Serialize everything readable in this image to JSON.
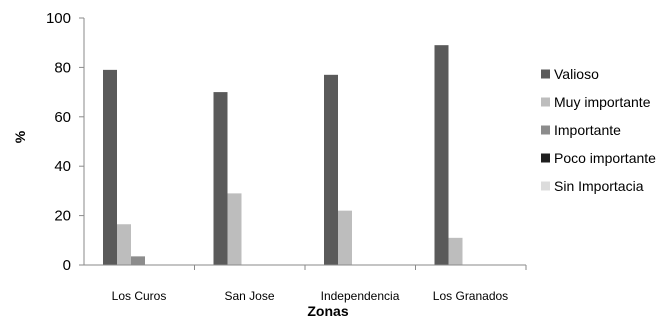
{
  "chart_data": {
    "type": "bar",
    "title": "",
    "xlabel": "Zonas",
    "ylabel": "%",
    "ylim": [
      0,
      100
    ],
    "yticks": [
      0,
      20,
      40,
      60,
      80,
      100
    ],
    "grid": false,
    "legend_position": "right",
    "categories": [
      "Los Curos",
      "San Jose",
      "Independencia",
      "Los Granados"
    ],
    "series": [
      {
        "name": "Valioso",
        "color": "#5a5a5a",
        "values": [
          79,
          70,
          77,
          89
        ]
      },
      {
        "name": "Muy importante",
        "color": "#bdbdbd",
        "values": [
          16.5,
          29,
          22,
          11
        ]
      },
      {
        "name": "Importante",
        "color": "#8c8c8c",
        "values": [
          3.5,
          0,
          0,
          0
        ]
      },
      {
        "name": "Poco importante",
        "color": "#1f1f1f",
        "values": [
          0,
          0,
          0,
          0
        ]
      },
      {
        "name": "Sin Importacia",
        "color": "#dcdcdc",
        "values": [
          0,
          0,
          0,
          0
        ]
      }
    ]
  }
}
